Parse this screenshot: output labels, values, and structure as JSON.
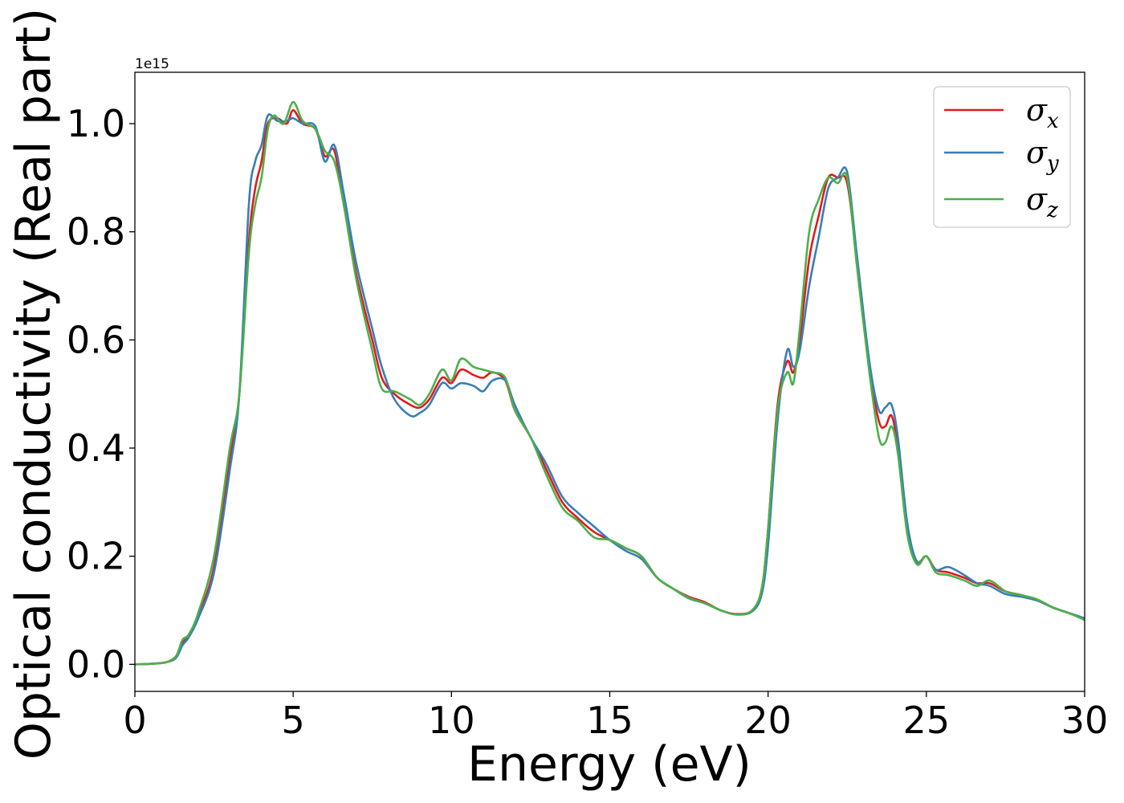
{
  "chart_data": {
    "type": "line",
    "title": "",
    "xlabel": "Energy (eV)",
    "ylabel": "Optical conductivity (Real part)",
    "y_offset_text": "1e15",
    "xlim": [
      0,
      30
    ],
    "ylim": [
      -0.05,
      1.095
    ],
    "x_ticks": [
      0,
      5,
      10,
      15,
      20,
      25,
      30
    ],
    "x_tick_labels": [
      "0",
      "5",
      "10",
      "15",
      "20",
      "25",
      "30"
    ],
    "y_ticks": [
      0.0,
      0.2,
      0.4,
      0.6,
      0.8,
      1.0
    ],
    "y_tick_labels": [
      "0.0",
      "0.2",
      "0.4",
      "0.6",
      "0.8",
      "1.0"
    ],
    "grid": false,
    "legend_position": "top-right",
    "series": [
      {
        "name": "σx",
        "symbol": "σ",
        "subscript": "x",
        "color": "#e31a1c",
        "points": [
          [
            0,
            0
          ],
          [
            0.5,
            0.001
          ],
          [
            1.0,
            0.004
          ],
          [
            1.3,
            0.015
          ],
          [
            1.5,
            0.04
          ],
          [
            1.7,
            0.055
          ],
          [
            2.0,
            0.09
          ],
          [
            2.5,
            0.18
          ],
          [
            3.0,
            0.38
          ],
          [
            3.3,
            0.5
          ],
          [
            3.6,
            0.78
          ],
          [
            3.8,
            0.88
          ],
          [
            4.0,
            0.93
          ],
          [
            4.2,
            1.0
          ],
          [
            4.5,
            1.01
          ],
          [
            4.8,
            1.0
          ],
          [
            5.0,
            1.025
          ],
          [
            5.3,
            1.0
          ],
          [
            5.7,
            0.99
          ],
          [
            6.0,
            0.94
          ],
          [
            6.3,
            0.95
          ],
          [
            6.6,
            0.85
          ],
          [
            7.0,
            0.72
          ],
          [
            7.5,
            0.6
          ],
          [
            7.8,
            0.53
          ],
          [
            8.2,
            0.5
          ],
          [
            8.7,
            0.48
          ],
          [
            9.0,
            0.475
          ],
          [
            9.3,
            0.49
          ],
          [
            9.7,
            0.53
          ],
          [
            10.0,
            0.52
          ],
          [
            10.3,
            0.545
          ],
          [
            10.7,
            0.535
          ],
          [
            11.0,
            0.53
          ],
          [
            11.3,
            0.54
          ],
          [
            11.7,
            0.525
          ],
          [
            12.0,
            0.47
          ],
          [
            12.5,
            0.42
          ],
          [
            13.0,
            0.36
          ],
          [
            13.5,
            0.3
          ],
          [
            14.0,
            0.27
          ],
          [
            14.5,
            0.245
          ],
          [
            15.0,
            0.23
          ],
          [
            15.5,
            0.215
          ],
          [
            16.0,
            0.2
          ],
          [
            16.5,
            0.16
          ],
          [
            17.0,
            0.14
          ],
          [
            17.5,
            0.125
          ],
          [
            18.0,
            0.115
          ],
          [
            18.5,
            0.1
          ],
          [
            19.0,
            0.093
          ],
          [
            19.5,
            0.1
          ],
          [
            19.8,
            0.14
          ],
          [
            20.0,
            0.25
          ],
          [
            20.3,
            0.48
          ],
          [
            20.6,
            0.56
          ],
          [
            20.8,
            0.54
          ],
          [
            21.0,
            0.6
          ],
          [
            21.3,
            0.75
          ],
          [
            21.6,
            0.83
          ],
          [
            21.9,
            0.9
          ],
          [
            22.2,
            0.9
          ],
          [
            22.5,
            0.89
          ],
          [
            22.8,
            0.75
          ],
          [
            23.2,
            0.55
          ],
          [
            23.5,
            0.45
          ],
          [
            23.7,
            0.44
          ],
          [
            23.9,
            0.46
          ],
          [
            24.1,
            0.4
          ],
          [
            24.4,
            0.25
          ],
          [
            24.7,
            0.19
          ],
          [
            25.0,
            0.2
          ],
          [
            25.3,
            0.175
          ],
          [
            25.7,
            0.17
          ],
          [
            26.2,
            0.16
          ],
          [
            26.6,
            0.15
          ],
          [
            27.0,
            0.15
          ],
          [
            27.5,
            0.135
          ],
          [
            28.0,
            0.128
          ],
          [
            28.5,
            0.12
          ],
          [
            29.0,
            0.105
          ],
          [
            29.5,
            0.095
          ],
          [
            30.0,
            0.085
          ]
        ]
      },
      {
        "name": "σy",
        "symbol": "σ",
        "subscript": "y",
        "color": "#377eb8",
        "points": [
          [
            0,
            0
          ],
          [
            0.5,
            0.001
          ],
          [
            1.0,
            0.004
          ],
          [
            1.3,
            0.012
          ],
          [
            1.5,
            0.035
          ],
          [
            1.7,
            0.05
          ],
          [
            2.0,
            0.085
          ],
          [
            2.5,
            0.17
          ],
          [
            3.0,
            0.36
          ],
          [
            3.3,
            0.5
          ],
          [
            3.6,
            0.85
          ],
          [
            3.8,
            0.93
          ],
          [
            4.0,
            0.96
          ],
          [
            4.2,
            1.015
          ],
          [
            4.5,
            1.005
          ],
          [
            4.8,
            1.005
          ],
          [
            5.0,
            1.01
          ],
          [
            5.3,
            1.0
          ],
          [
            5.7,
            0.995
          ],
          [
            6.0,
            0.93
          ],
          [
            6.3,
            0.96
          ],
          [
            6.6,
            0.87
          ],
          [
            7.0,
            0.74
          ],
          [
            7.5,
            0.62
          ],
          [
            7.8,
            0.55
          ],
          [
            8.2,
            0.49
          ],
          [
            8.7,
            0.46
          ],
          [
            9.0,
            0.465
          ],
          [
            9.3,
            0.48
          ],
          [
            9.7,
            0.52
          ],
          [
            10.0,
            0.51
          ],
          [
            10.3,
            0.52
          ],
          [
            10.7,
            0.515
          ],
          [
            11.0,
            0.505
          ],
          [
            11.3,
            0.525
          ],
          [
            11.7,
            0.525
          ],
          [
            12.0,
            0.48
          ],
          [
            12.5,
            0.42
          ],
          [
            13.0,
            0.37
          ],
          [
            13.5,
            0.31
          ],
          [
            14.0,
            0.28
          ],
          [
            14.5,
            0.255
          ],
          [
            15.0,
            0.23
          ],
          [
            15.5,
            0.21
          ],
          [
            16.0,
            0.195
          ],
          [
            16.5,
            0.16
          ],
          [
            17.0,
            0.14
          ],
          [
            17.5,
            0.122
          ],
          [
            18.0,
            0.113
          ],
          [
            18.5,
            0.1
          ],
          [
            19.0,
            0.092
          ],
          [
            19.5,
            0.098
          ],
          [
            19.8,
            0.13
          ],
          [
            20.0,
            0.22
          ],
          [
            20.3,
            0.45
          ],
          [
            20.6,
            0.58
          ],
          [
            20.8,
            0.55
          ],
          [
            21.0,
            0.58
          ],
          [
            21.3,
            0.7
          ],
          [
            21.6,
            0.79
          ],
          [
            21.9,
            0.88
          ],
          [
            22.2,
            0.9
          ],
          [
            22.5,
            0.91
          ],
          [
            22.8,
            0.76
          ],
          [
            23.2,
            0.56
          ],
          [
            23.5,
            0.47
          ],
          [
            23.7,
            0.475
          ],
          [
            23.9,
            0.48
          ],
          [
            24.1,
            0.42
          ],
          [
            24.4,
            0.26
          ],
          [
            24.7,
            0.19
          ],
          [
            25.0,
            0.2
          ],
          [
            25.3,
            0.175
          ],
          [
            25.7,
            0.18
          ],
          [
            26.2,
            0.165
          ],
          [
            26.6,
            0.15
          ],
          [
            27.0,
            0.145
          ],
          [
            27.5,
            0.13
          ],
          [
            28.0,
            0.125
          ],
          [
            28.5,
            0.118
          ],
          [
            29.0,
            0.105
          ],
          [
            29.5,
            0.095
          ],
          [
            30.0,
            0.085
          ]
        ]
      },
      {
        "name": "σz",
        "symbol": "σ",
        "subscript": "z",
        "color": "#4daf4a",
        "points": [
          [
            0,
            0
          ],
          [
            0.5,
            0.001
          ],
          [
            1.0,
            0.004
          ],
          [
            1.3,
            0.015
          ],
          [
            1.5,
            0.045
          ],
          [
            1.7,
            0.055
          ],
          [
            2.0,
            0.095
          ],
          [
            2.5,
            0.2
          ],
          [
            3.0,
            0.4
          ],
          [
            3.3,
            0.5
          ],
          [
            3.6,
            0.76
          ],
          [
            3.8,
            0.85
          ],
          [
            4.0,
            0.9
          ],
          [
            4.2,
            0.99
          ],
          [
            4.4,
            1.015
          ],
          [
            4.7,
            1.0
          ],
          [
            5.0,
            1.04
          ],
          [
            5.3,
            1.005
          ],
          [
            5.7,
            0.99
          ],
          [
            6.0,
            0.95
          ],
          [
            6.3,
            0.93
          ],
          [
            6.6,
            0.85
          ],
          [
            7.0,
            0.71
          ],
          [
            7.5,
            0.58
          ],
          [
            7.8,
            0.51
          ],
          [
            8.2,
            0.505
          ],
          [
            8.7,
            0.49
          ],
          [
            9.0,
            0.48
          ],
          [
            9.3,
            0.5
          ],
          [
            9.7,
            0.545
          ],
          [
            10.0,
            0.525
          ],
          [
            10.3,
            0.565
          ],
          [
            10.7,
            0.55
          ],
          [
            11.0,
            0.545
          ],
          [
            11.3,
            0.54
          ],
          [
            11.7,
            0.53
          ],
          [
            12.0,
            0.47
          ],
          [
            12.5,
            0.42
          ],
          [
            13.0,
            0.35
          ],
          [
            13.5,
            0.29
          ],
          [
            14.0,
            0.265
          ],
          [
            14.5,
            0.235
          ],
          [
            15.0,
            0.23
          ],
          [
            15.5,
            0.215
          ],
          [
            16.0,
            0.2
          ],
          [
            16.5,
            0.16
          ],
          [
            17.0,
            0.14
          ],
          [
            17.5,
            0.123
          ],
          [
            18.0,
            0.113
          ],
          [
            18.5,
            0.1
          ],
          [
            19.0,
            0.092
          ],
          [
            19.5,
            0.1
          ],
          [
            19.8,
            0.14
          ],
          [
            20.0,
            0.25
          ],
          [
            20.3,
            0.47
          ],
          [
            20.6,
            0.54
          ],
          [
            20.8,
            0.52
          ],
          [
            21.0,
            0.62
          ],
          [
            21.3,
            0.8
          ],
          [
            21.6,
            0.86
          ],
          [
            21.9,
            0.9
          ],
          [
            22.2,
            0.89
          ],
          [
            22.5,
            0.9
          ],
          [
            22.8,
            0.74
          ],
          [
            23.2,
            0.54
          ],
          [
            23.5,
            0.42
          ],
          [
            23.7,
            0.41
          ],
          [
            23.9,
            0.44
          ],
          [
            24.1,
            0.39
          ],
          [
            24.4,
            0.24
          ],
          [
            24.7,
            0.185
          ],
          [
            25.0,
            0.2
          ],
          [
            25.3,
            0.17
          ],
          [
            25.7,
            0.165
          ],
          [
            26.2,
            0.155
          ],
          [
            26.6,
            0.145
          ],
          [
            27.0,
            0.155
          ],
          [
            27.5,
            0.135
          ],
          [
            28.0,
            0.128
          ],
          [
            28.5,
            0.12
          ],
          [
            29.0,
            0.105
          ],
          [
            29.5,
            0.095
          ],
          [
            30.0,
            0.082
          ]
        ]
      }
    ]
  }
}
